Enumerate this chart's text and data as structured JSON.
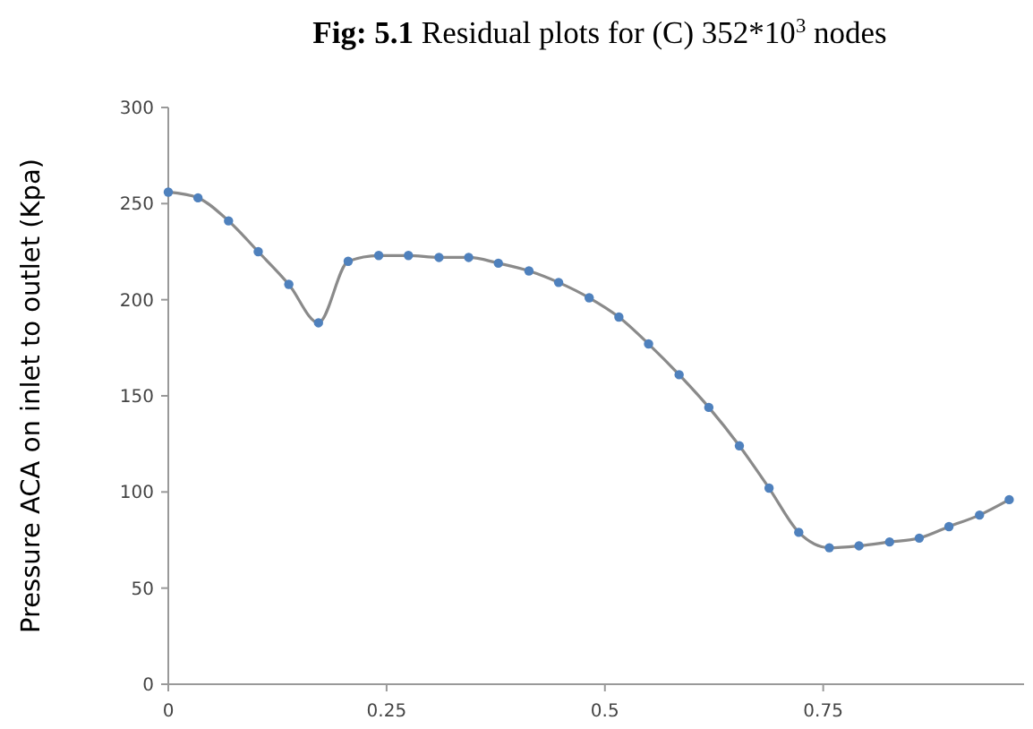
{
  "chart_data": {
    "type": "line",
    "title": "Fig: 5.1 Residual plots for (C) 352*10$^{3}$ nodes",
    "ylabel": "Pressure ACA on inlet to outlet (Kpa)",
    "x": [
      0,
      0.034,
      0.069,
      0.103,
      0.138,
      0.172,
      0.206,
      0.241,
      0.275,
      0.31,
      0.344,
      0.378,
      0.413,
      0.447,
      0.482,
      0.516,
      0.55,
      0.585,
      0.619,
      0.654,
      0.688,
      0.722,
      0.757,
      0.791,
      0.826,
      0.86,
      0.894,
      0.929,
      0.963
    ],
    "series": [
      {
        "color": "#4f81bd",
        "values": [
          256,
          253,
          241,
          225,
          208,
          188,
          220,
          223,
          223,
          222,
          222,
          219,
          215,
          209,
          201,
          191,
          177,
          161,
          144,
          124,
          102,
          79,
          71,
          72,
          74,
          76,
          82,
          88,
          96
        ]
      }
    ],
    "xlim": [
      0,
      0.98
    ],
    "xticks": [
      0,
      0.25,
      0.5,
      0.75
    ],
    "ylim": [
      0,
      300
    ],
    "yticks": [
      0,
      50,
      100,
      150,
      200,
      250,
      300
    ],
    "grid": false,
    "marker": "circle",
    "line_style": "solid"
  }
}
